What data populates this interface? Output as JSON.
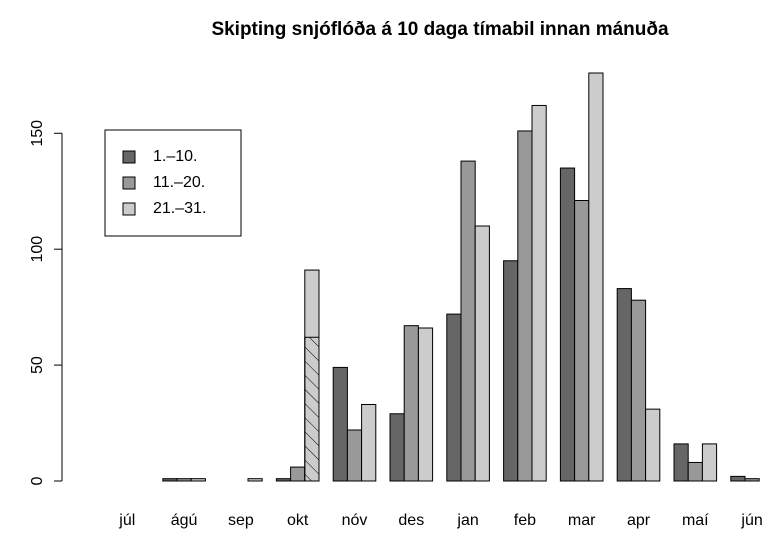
{
  "chart_data": {
    "type": "bar",
    "title": "Skipting snjóflóða á 10 daga tímabil innan mánuða",
    "categories": [
      "júl",
      "ágú",
      "sep",
      "okt",
      "nóv",
      "des",
      "jan",
      "feb",
      "mar",
      "apr",
      "maí",
      "jún"
    ],
    "series": [
      {
        "name": "1.–10.",
        "color": "#666666",
        "values": [
          0,
          1,
          0,
          1,
          49,
          29,
          72,
          95,
          135,
          83,
          16,
          2
        ]
      },
      {
        "name": "11.–20.",
        "color": "#999999",
        "values": [
          0,
          1,
          0,
          6,
          22,
          67,
          138,
          151,
          121,
          78,
          8,
          1
        ]
      },
      {
        "name": "21.–31.",
        "color": "#cccccc",
        "values": [
          0,
          1,
          1,
          91,
          33,
          66,
          110,
          162,
          176,
          31,
          16,
          0
        ],
        "hatched": [
          null,
          null,
          null,
          62,
          null,
          null,
          null,
          null,
          null,
          null,
          null,
          null
        ]
      }
    ],
    "ylim": [
      0,
      176
    ],
    "yticks": [
      0,
      50,
      100,
      150
    ],
    "legend": "top-left",
    "grid": false
  }
}
